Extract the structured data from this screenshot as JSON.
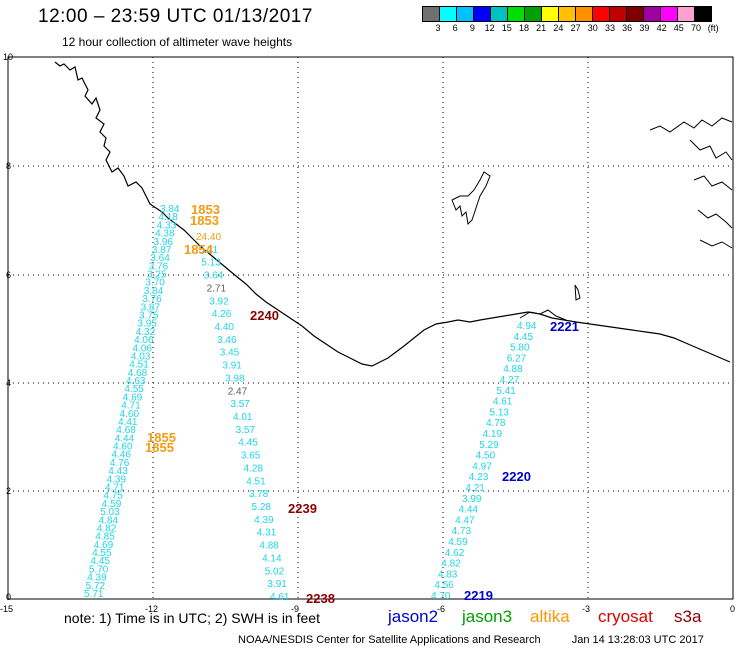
{
  "header": {
    "title": "12:00 – 23:59 UTC 01/13/2017",
    "subtitle": "12 hour collection of altimeter wave heights"
  },
  "colorbar": {
    "colors": [
      "#707070",
      "#00ffff",
      "#00c0ff",
      "#0000ff",
      "#00c0c0",
      "#00e000",
      "#00a000",
      "#ffff00",
      "#ffc000",
      "#ff9000",
      "#ff0000",
      "#c00000",
      "#800000",
      "#a000a0",
      "#ff00ff",
      "#ffa0d0",
      "#000000"
    ],
    "labels": [
      "3",
      "6",
      "9",
      "12",
      "15",
      "18",
      "21",
      "24",
      "27",
      "30",
      "33",
      "36",
      "39",
      "42",
      "45",
      "70",
      "(ft)"
    ]
  },
  "axes": {
    "x_ticks": [
      "-15",
      "-12",
      "-9",
      "-6",
      "-3",
      "0"
    ],
    "y_ticks": [
      "0",
      "2",
      "4",
      "6",
      "8",
      "10"
    ]
  },
  "tracks": {
    "track_left_a": [
      "3.84",
      "4.18",
      "4.33",
      "4.38",
      "3.96",
      "3.87",
      "3.64",
      "3.76",
      "3.25",
      "3.70",
      "3.84",
      "3.76",
      "3.87",
      "3.75",
      "3.95",
      "4.32",
      "4.06",
      "4.06",
      "4.03",
      "4.51",
      "4.68",
      "4.63",
      "4.55",
      "4.69",
      "4.71",
      "4.60",
      "4.41",
      "4.68",
      "4.44",
      "4.60",
      "4.46",
      "4.76",
      "4.43",
      "4.39",
      "4.71",
      "4.75",
      "4.59",
      "5.03",
      "4.84",
      "4.82",
      "4.85",
      "4.69",
      "4.55",
      "4.45",
      "5.70",
      "4.39",
      "5.72",
      "5.71"
    ],
    "track_left_b": [
      "24.40",
      "5.21",
      "5.13",
      "3.64",
      "2.71",
      "3.92",
      "4.26",
      "4.40",
      "3.46",
      "3.45",
      "3.91",
      "3.98",
      "2.47",
      "3.57",
      "4.01",
      "3.57",
      "4.45",
      "3.65",
      "4.28",
      "4.51",
      "3.78",
      "5.28",
      "4.39",
      "4.31",
      "4.88",
      "4.14",
      "5.02",
      "3.91",
      "4.61"
    ],
    "track_right": [
      "4.94",
      "4.45",
      "5.80",
      "6.27",
      "4.88",
      "4.27",
      "5.41",
      "4.61",
      "5.13",
      "4.78",
      "4.19",
      "5.29",
      "4.50",
      "4.97",
      "4.23",
      "4.21",
      "3.99",
      "4.44",
      "4.47",
      "4.73",
      "4.59",
      "4.62",
      "4.82",
      "4.83",
      "4.56",
      "4.70"
    ]
  },
  "pass_times": [
    {
      "label": "1853",
      "color": "#f39c12"
    },
    {
      "label": "1853",
      "color": "#f39c12"
    },
    {
      "label": "1854",
      "color": "#f39c12"
    },
    {
      "label": "2240",
      "color": "#8b0000"
    },
    {
      "label": "2221",
      "color": "#0000cc"
    },
    {
      "label": "1855",
      "color": "#f39c12"
    },
    {
      "label": "1855",
      "color": "#f39c12"
    },
    {
      "label": "2220",
      "color": "#0000cc"
    },
    {
      "label": "2239",
      "color": "#8b0000"
    },
    {
      "label": "2238",
      "color": "#8b0000"
    },
    {
      "label": "2219",
      "color": "#0000cc"
    }
  ],
  "footer": {
    "note": "note:  1) Time is in UTC;  2) SWH is in feet",
    "legend": [
      {
        "label": "jason2",
        "color": "#0000cc"
      },
      {
        "label": "jason3",
        "color": "#00a000"
      },
      {
        "label": "altika",
        "color": "#ff9900"
      },
      {
        "label": "cryosat",
        "color": "#dd0000"
      },
      {
        "label": "s3a",
        "color": "#8b0000"
      }
    ],
    "credit": "NOAA/NESDIS Center for Satellite Applications and Research",
    "timestamp": "Jan 14 13:28:03 UTC 2017"
  }
}
